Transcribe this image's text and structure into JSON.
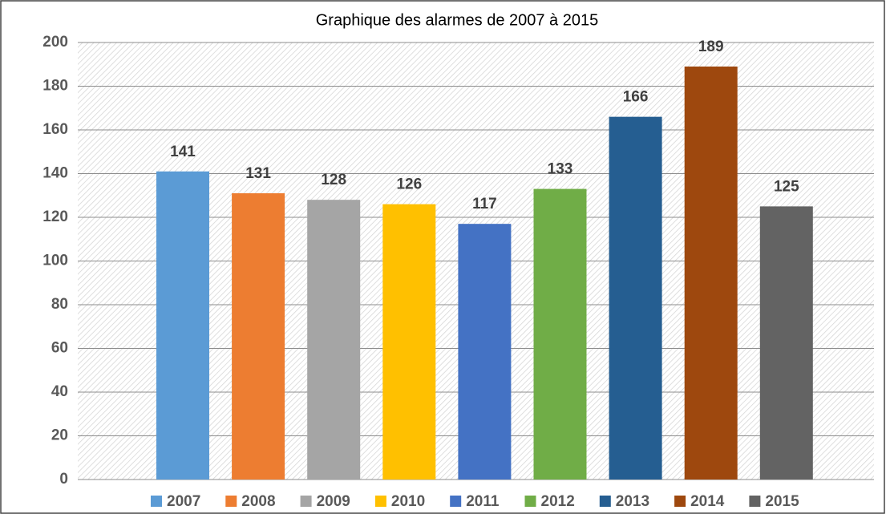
{
  "chart_data": {
    "type": "bar",
    "title": "Graphique des alarmes de 2007 à 2015",
    "categories": [
      "2007",
      "2008",
      "2009",
      "2010",
      "2011",
      "2012",
      "2013",
      "2014",
      "2015"
    ],
    "values": [
      141,
      131,
      128,
      126,
      117,
      133,
      166,
      189,
      125
    ],
    "colors": [
      "#5b9bd5",
      "#ed7d31",
      "#a5a5a5",
      "#ffc000",
      "#4472c4",
      "#70ad47",
      "#255e91",
      "#9e480e",
      "#636363"
    ],
    "ylim": [
      0,
      200
    ],
    "yticks": [
      0,
      20,
      40,
      60,
      80,
      100,
      120,
      140,
      160,
      180,
      200
    ],
    "grid": true,
    "legend": "bottom"
  }
}
